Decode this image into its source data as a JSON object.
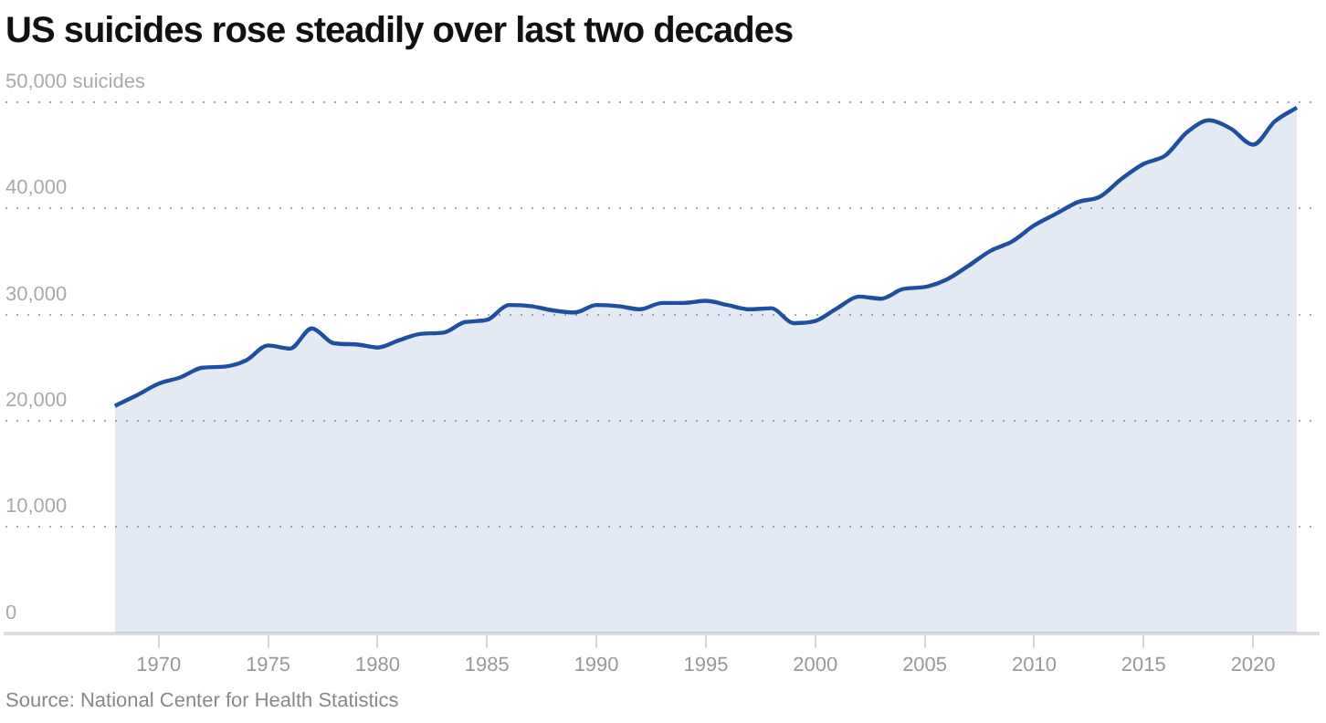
{
  "chart_data": {
    "type": "area",
    "title": "US suicides rose steadily over last two decades",
    "x": [
      1968,
      1969,
      1970,
      1971,
      1972,
      1973,
      1974,
      1975,
      1976,
      1977,
      1978,
      1979,
      1980,
      1981,
      1982,
      1983,
      1984,
      1985,
      1986,
      1987,
      1988,
      1989,
      1990,
      1991,
      1992,
      1993,
      1994,
      1995,
      1996,
      1997,
      1998,
      1999,
      2000,
      2001,
      2002,
      2003,
      2004,
      2005,
      2006,
      2007,
      2008,
      2009,
      2010,
      2011,
      2012,
      2013,
      2014,
      2015,
      2016,
      2017,
      2018,
      2019,
      2020,
      2021,
      2022
    ],
    "series": [
      {
        "color": "#1f4f9e",
        "values": [
          21400,
          22400,
          23500,
          24100,
          25000,
          25100,
          25700,
          27100,
          26800,
          28700,
          27300,
          27200,
          26900,
          27600,
          28200,
          28300,
          29300,
          29500,
          30900,
          30800,
          30400,
          30200,
          30900,
          30800,
          30500,
          31100,
          31100,
          31300,
          30900,
          30500,
          30600,
          29200,
          29400,
          30600,
          31700,
          31500,
          32400,
          32600,
          33300,
          34600,
          36000,
          36900,
          38400,
          39500,
          40600,
          41100,
          42800,
          44200,
          45000,
          47200,
          48300,
          47500,
          46000,
          48200,
          49500
        ]
      }
    ],
    "xlim": [
      1963,
      2023
    ],
    "xticks": [
      1970,
      1975,
      1980,
      1985,
      1990,
      1995,
      2000,
      2005,
      2010,
      2015,
      2020
    ],
    "ylim": [
      0,
      50000
    ],
    "yticks": [
      0,
      {
        "value": 10000,
        "label": "10,000"
      },
      {
        "value": 20000,
        "label": "20,000"
      },
      {
        "value": 30000,
        "label": "30,000"
      },
      {
        "value": 40000,
        "label": "40,000"
      },
      {
        "value": 50000,
        "label": "50,000 suicides"
      }
    ],
    "grid": "y",
    "legend": false,
    "marker": "none",
    "line_style": "solid",
    "annotations": [
      "Source: National Center for Health Statistics"
    ]
  }
}
